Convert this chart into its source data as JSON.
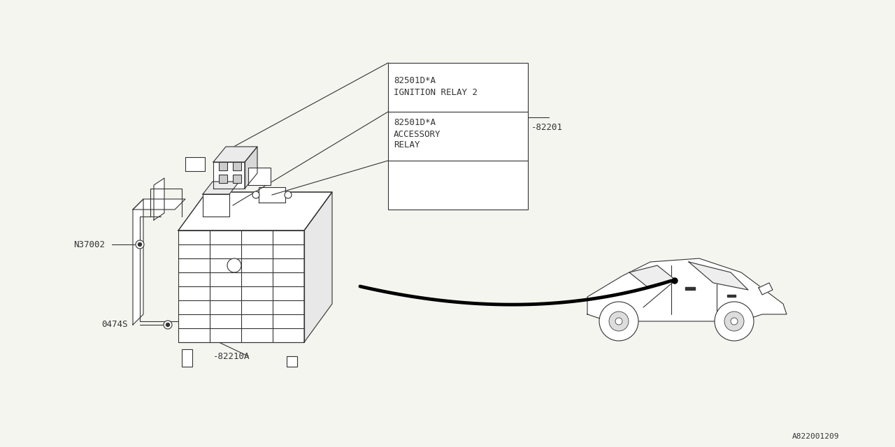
{
  "bg_color": "#f5f5f0",
  "line_color": "#333333",
  "title": "",
  "diagram_id": "A822001209",
  "labels": {
    "ignition_relay_part": "82501D*A",
    "ignition_relay_name": "IGNITION RELAY 2",
    "accessory_relay_part": "82501D*A",
    "accessory_relay_name1": "ACCESSORY",
    "accessory_relay_name2": "RELAY",
    "part_82201": "82201",
    "part_82210A": "82210A",
    "part_N37002": "N37002",
    "part_0474S": "0474S"
  },
  "font_family": "monospace",
  "font_size_label": 9,
  "font_size_diagram_id": 8
}
